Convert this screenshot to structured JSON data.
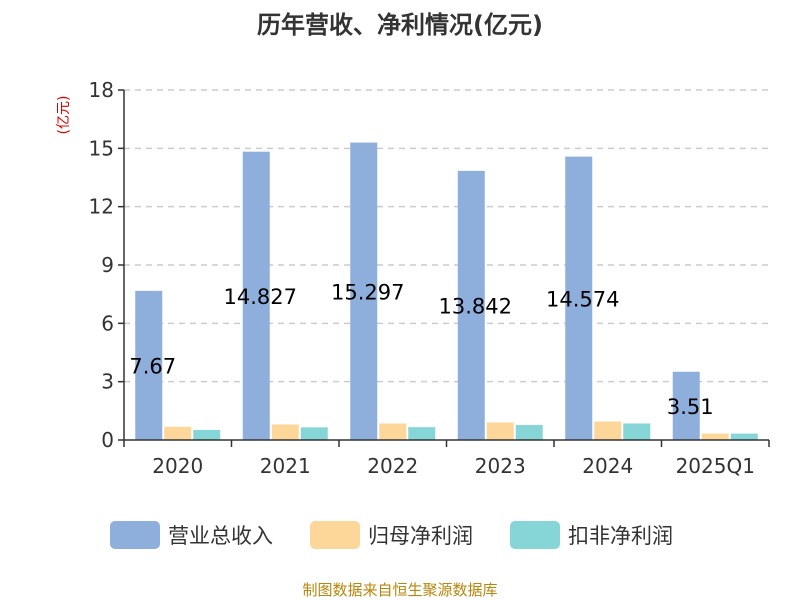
{
  "chart_data": {
    "type": "bar",
    "title": "历年营收、净利情况(亿元)",
    "unit_label": "(亿元)",
    "categories": [
      "2020",
      "2021",
      "2022",
      "2023",
      "2024",
      "2025Q1"
    ],
    "series": [
      {
        "name": "营业总收入",
        "color": "#8eaedc",
        "values": [
          7.67,
          14.827,
          15.297,
          13.842,
          14.574,
          3.51
        ],
        "labels": [
          "7.67",
          "14.827",
          "15.297",
          "13.842",
          "14.574",
          "3.51"
        ]
      },
      {
        "name": "归母净利润",
        "color": "#fdd799",
        "values": [
          0.68,
          0.8,
          0.85,
          0.9,
          0.95,
          0.33
        ]
      },
      {
        "name": "扣非净利润",
        "color": "#86d5d7",
        "values": [
          0.52,
          0.65,
          0.66,
          0.77,
          0.85,
          0.33
        ]
      }
    ],
    "yticks": [
      "0",
      "3",
      "6",
      "9",
      "12",
      "15",
      "18"
    ],
    "ylim": [
      0,
      18
    ],
    "grid": "horizontal-dashed",
    "legend_position": "bottom",
    "source": "制图数据来自恒生聚源数据库"
  }
}
